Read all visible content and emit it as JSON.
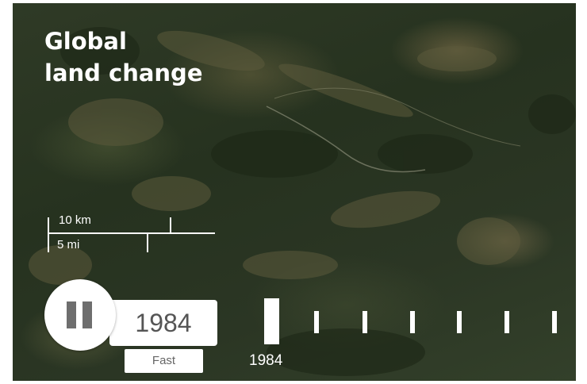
{
  "map": {
    "title_line1": "Global",
    "title_line2": "land change"
  },
  "scale_bar": {
    "top_label": "10 km",
    "bottom_label": "5 mi"
  },
  "player": {
    "pause_icon": "pause-icon",
    "year": "1984",
    "speed_label": "Fast"
  },
  "timeline": {
    "current_year_label": "1984",
    "tick_count": 7,
    "current_index": 0
  }
}
